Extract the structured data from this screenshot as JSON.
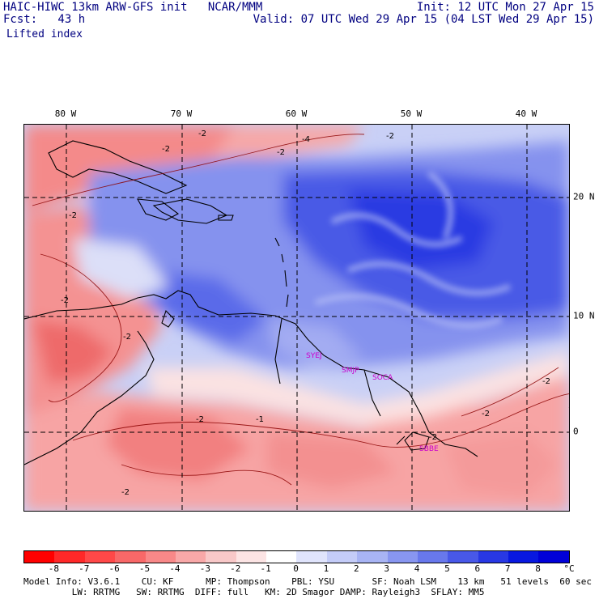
{
  "header": {
    "left_line1": "HAIC-HIWC 13km ARW-GFS init   NCAR/MMM",
    "left_line2": "Fcst:   43 h",
    "right_line1": "Init: 12 UTC Mon 27 Apr 15",
    "right_line2": "Valid: 07 UTC Wed 29 Apr 15 (04 LST Wed 29 Apr 15)",
    "field": "Lifted index"
  },
  "map": {
    "lon_labels": [
      "80 W",
      "70 W",
      "60 W",
      "50 W",
      "40 W"
    ],
    "lat_labels": [
      "20 N",
      "10 N",
      "0"
    ],
    "stations": [
      "SYEJ",
      "SMJP",
      "SOCA",
      "SBBE"
    ],
    "contour_labels": [
      "-2",
      "-2",
      "-2",
      "-2",
      "-2",
      "-1",
      "-2",
      "-2",
      "-2",
      "-2",
      "-2",
      "-2",
      "-2",
      "-4"
    ],
    "colors": {
      "land": "#000000",
      "grid": "#000000",
      "station": "#cc00cc",
      "contour": "#8b0000"
    }
  },
  "colorbar": {
    "labels": [
      "-8",
      "-7",
      "-6",
      "-5",
      "-4",
      "-3",
      "-2",
      "-1",
      "0",
      "1",
      "2",
      "3",
      "4",
      "5",
      "6",
      "7",
      "8"
    ],
    "unit": "°C",
    "colors": [
      "#ff0000",
      "#ff2828",
      "#ff4848",
      "#f86868",
      "#f88888",
      "#f8a8a8",
      "#f8c8c8",
      "#fce4e4",
      "#ffffff",
      "#e0e4fc",
      "#c4ccf8",
      "#a8b4f4",
      "#8896f0",
      "#6878ec",
      "#4858e8",
      "#2838e4",
      "#0818e0"
    ]
  },
  "model_info": {
    "line1": "Model Info: V3.6.1    CU: KF      MP: Thompson    PBL: YSU       SF: Noah LSM    13 km   51 levels  60 sec",
    "line2": "         LW: RRTMG   SW: RRTMG  DIFF: full   KM: 2D Smagor DAMP: Rayleigh3  SFLAY: MM5"
  }
}
